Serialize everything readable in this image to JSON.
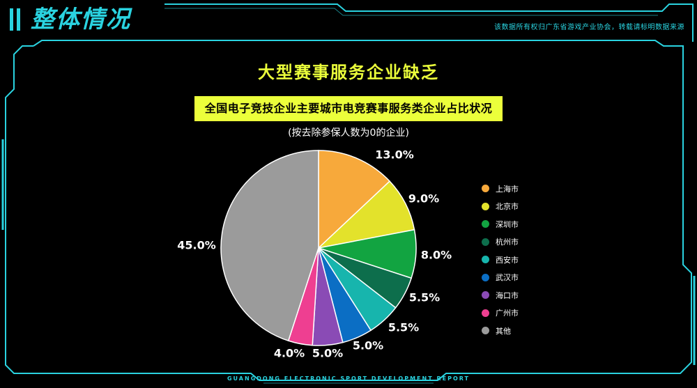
{
  "header": {
    "title": "整体情况",
    "copyright": "该数据所有权归广东省游戏产业协会，转载请标明数据来源",
    "accent_color": "#2ad3e0"
  },
  "main_heading": "大型赛事服务企业缺乏",
  "subtitle": "全国电子竞技企业主要城市电竞赛事服务类企业占比状况",
  "note": "(按去除参保人数为0的企业)",
  "footer": "GUANGDONG ELECTRONIC SPORT DEVELOPMENT REPORT",
  "chart_data": {
    "type": "pie",
    "title": "全国电子竞技企业主要城市电竞赛事服务类企业占比状况",
    "subtitle": "(按去除参保人数为0的企业)",
    "legend_position": "right",
    "slices": [
      {
        "label": "上海市",
        "value": 13.0,
        "display": "13.0%",
        "color": "#f7a93b"
      },
      {
        "label": "北京市",
        "value": 9.0,
        "display": "9.0%",
        "color": "#e3e22b"
      },
      {
        "label": "深圳市",
        "value": 8.0,
        "display": "8.0%",
        "color": "#12a441"
      },
      {
        "label": "杭州市",
        "value": 5.5,
        "display": "5.5%",
        "color": "#0d6e4c"
      },
      {
        "label": "西安市",
        "value": 5.5,
        "display": "5.5%",
        "color": "#17b5ad"
      },
      {
        "label": "武汉市",
        "value": 5.0,
        "display": "5.0%",
        "color": "#0b6ec4"
      },
      {
        "label": "海口市",
        "value": 5.0,
        "display": "5.0%",
        "color": "#8a4bb5"
      },
      {
        "label": "广州市",
        "value": 4.0,
        "display": "4.0%",
        "color": "#ee3f91"
      },
      {
        "label": "其他",
        "value": 45.0,
        "display": "45.0%",
        "color": "#9b9b9b"
      }
    ]
  }
}
